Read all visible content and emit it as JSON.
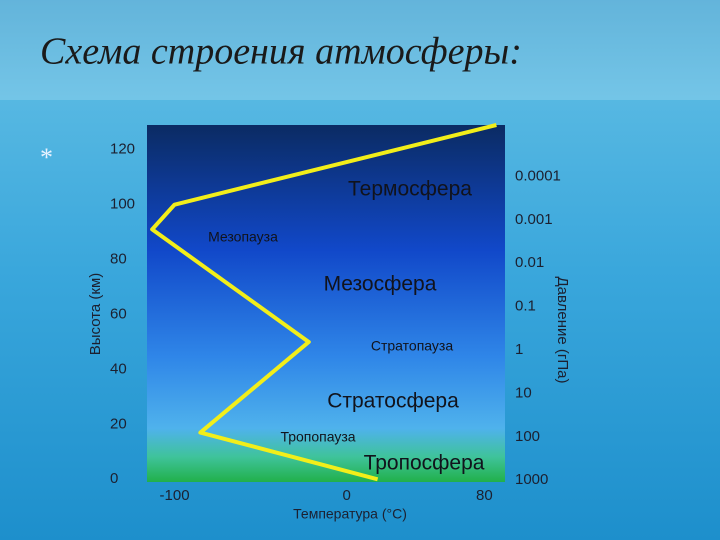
{
  "chart_data": {
    "type": "line",
    "title": "Схема строения атмосферы:",
    "bullet": "*",
    "x_label": "Температура (°С)",
    "y_label": "Высота (км)",
    "y2_label": "Давление (гПа)",
    "x": [
      18,
      -85,
      -22,
      -113,
      -100,
      87
    ],
    "series": [
      {
        "color": "#f2ee1a",
        "values": [
          0,
          17,
          50,
          91,
          100,
          129
        ]
      }
    ],
    "xlim": [
      -116,
      92
    ],
    "xticks": [
      -100,
      0,
      80
    ],
    "ylim": [
      -1,
      129
    ],
    "yticks": [
      0,
      20,
      40,
      60,
      80,
      100,
      120
    ],
    "y2lim": [
      1100,
      6.5e-06
    ],
    "y2ticks": [
      1000,
      100,
      10,
      1,
      0.1,
      0.01,
      0.001,
      0.0001
    ],
    "y2_log": true,
    "annotations": [
      "Термосфера",
      "Мезопауза",
      "Мезосфера",
      "Стратопауза",
      "Стратосфера",
      "Тропопауза",
      "Тропосфера"
    ]
  }
}
